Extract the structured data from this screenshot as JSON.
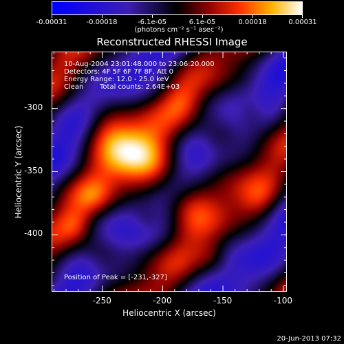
{
  "colorbar": {
    "tick_labels": [
      "-0.00031",
      "-0.00018",
      "-6.1e-05",
      "6.1e-05",
      "0.00018",
      "0.00031"
    ],
    "range": [
      -0.00031,
      0.00031
    ],
    "colormap": "rhessi-blue-black-red-yellow-white",
    "colors": [
      "#0000ff",
      "#3d1fb4",
      "#000000",
      "#8a0000",
      "#ff3000",
      "#ffb400",
      "#ffffff"
    ]
  },
  "units_label": "(photons cm⁻² s⁻¹ asec⁻²)",
  "title": "Reconstructed RHESSI Image",
  "info": {
    "time_range": "10-Aug-2004 23:01:48.000 to 23:06:20.000",
    "detectors": "Detectors: 4F 5F 6F 7F 8F, Att 0",
    "energy_range": "Energy Range: 12.0 - 25.0 keV",
    "clean": "Clean",
    "total_counts": "Total counts: 2.64E+03",
    "peak_position": "Position of Peak = [-231,-327]"
  },
  "axes": {
    "xlabel": "Heliocentric X (arcsec)",
    "ylabel": "Heliocentric Y (arcsec)",
    "xlim": [
      -292,
      -97
    ],
    "ylim": [
      -445,
      -255
    ],
    "xticks": [
      -250,
      -200,
      -150,
      -100
    ],
    "xtick_labels": [
      "-250",
      "-200",
      "-150",
      "-100"
    ],
    "yticks": [
      -300,
      -350,
      -400
    ],
    "ytick_labels": [
      "-300",
      "-350",
      "-400"
    ]
  },
  "footer_date": "20-Jun-2013 07:32"
}
